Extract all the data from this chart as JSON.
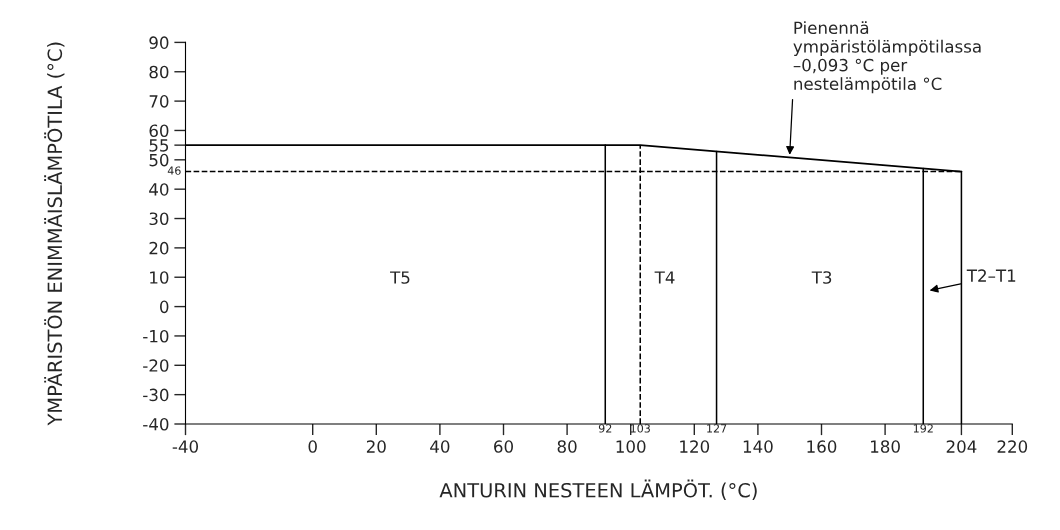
{
  "chart_data": {
    "type": "line",
    "xlabel": "ANTURIN NESTEEN LÄMPÖT. (°C)",
    "ylabel": "YMPÄRISTÖN ENIMMÄISLÄMPÖTILA (°C)",
    "x": [
      -40,
      103,
      204
    ],
    "series": [
      {
        "color": "#000000",
        "values": [
          55,
          55,
          46
        ]
      }
    ],
    "xlim": [
      -40,
      220
    ],
    "xticks": [
      -40,
      0,
      20,
      40,
      60,
      80,
      100,
      120,
      140,
      160,
      180,
      204,
      220
    ],
    "ylim": [
      -40,
      90
    ],
    "yticks": [
      -40,
      -30,
      -20,
      -10,
      0,
      10,
      20,
      30,
      40,
      50,
      55,
      60,
      70,
      80,
      90
    ],
    "ref_lines": [
      {
        "axis": "y",
        "value": 46,
        "label": "46",
        "line_style": "dashed"
      },
      {
        "axis": "x",
        "value": 92,
        "label": "92",
        "line_style": "solid"
      },
      {
        "axis": "x",
        "value": 103,
        "label": "103",
        "line_style": "dashed"
      },
      {
        "axis": "x",
        "value": 127,
        "label": "127",
        "line_style": "solid"
      },
      {
        "axis": "x",
        "value": 192,
        "label": "192",
        "line_style": "solid"
      },
      {
        "axis": "x",
        "value": 204,
        "line_style": "solid"
      }
    ],
    "annotations": [
      "T5",
      "T4",
      "T3",
      "T2–T1",
      {
        "text": "Pienennä\nympäristölämpötilassa\n–0,093 °C per\nnestelämpötila °C",
        "x": 150,
        "y": 51.7
      }
    ],
    "grid": false,
    "legend": false,
    "marker": "none",
    "line_style": "solid"
  }
}
